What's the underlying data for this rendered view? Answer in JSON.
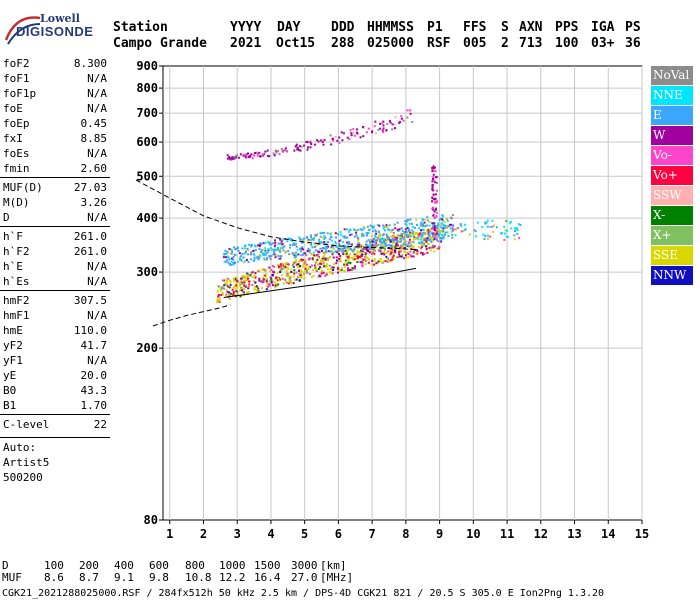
{
  "logo": {
    "line1": "Lowell",
    "line2": "DIGISONDE"
  },
  "header": {
    "labels": [
      "Station",
      "YYYY",
      "DAY",
      "DDD",
      "HHMMSS",
      "P1",
      "FFS",
      "S",
      "AXN",
      "PPS",
      "IGA",
      "PS"
    ],
    "values": [
      "Campo Grande",
      "2021",
      "Oct15",
      "288",
      "025000",
      "RSF",
      "005",
      "2",
      "713",
      "100",
      "03+",
      "36"
    ]
  },
  "params": {
    "group1": [
      {
        "name": "foF2",
        "value": "8.300"
      },
      {
        "name": "foF1",
        "value": "N/A"
      },
      {
        "name": "foF1p",
        "value": "N/A"
      },
      {
        "name": "foE",
        "value": "N/A"
      },
      {
        "name": "foEp",
        "value": "0.45"
      },
      {
        "name": "fxI",
        "value": "8.85"
      },
      {
        "name": "foEs",
        "value": "N/A"
      },
      {
        "name": "fmin",
        "value": "2.60"
      }
    ],
    "group2": [
      {
        "name": "MUF(D)",
        "value": "27.03"
      },
      {
        "name": "M(D)",
        "value": "3.26"
      },
      {
        "name": "D",
        "value": "N/A"
      }
    ],
    "group3": [
      {
        "name": "h`F",
        "value": "261.0"
      },
      {
        "name": "h`F2",
        "value": "261.0"
      },
      {
        "name": "h`E",
        "value": "N/A"
      },
      {
        "name": "h`Es",
        "value": "N/A"
      }
    ],
    "group4": [
      {
        "name": "hmF2",
        "value": "307.5"
      },
      {
        "name": "hmF1",
        "value": "N/A"
      },
      {
        "name": "hmE",
        "value": "110.0"
      },
      {
        "name": "yF2",
        "value": "41.7"
      },
      {
        "name": "yF1",
        "value": "N/A"
      },
      {
        "name": "yE",
        "value": "20.0"
      },
      {
        "name": "B0",
        "value": "43.3"
      },
      {
        "name": "B1",
        "value": "1.70"
      }
    ],
    "group5": [
      {
        "name": "C-level",
        "value": "22"
      }
    ],
    "auto_lines": [
      "Auto:",
      "Artist5",
      "500200"
    ]
  },
  "legend": [
    {
      "label": "NoVal",
      "color": "#8c8c8c"
    },
    {
      "label": "NNE",
      "color": "#00e6ff"
    },
    {
      "label": "E",
      "color": "#3aa6ff"
    },
    {
      "label": "W",
      "color": "#a0009e"
    },
    {
      "label": "Vo-",
      "color": "#ff44cc"
    },
    {
      "label": "Vo+",
      "color": "#ff0040"
    },
    {
      "label": "SSW",
      "color": "#ffb0b0"
    },
    {
      "label": "X-",
      "color": "#008000"
    },
    {
      "label": "X+",
      "color": "#80c060"
    },
    {
      "label": "SSE",
      "color": "#d8d800"
    },
    {
      "label": "NNW",
      "color": "#1010c0"
    }
  ],
  "bottom": {
    "d_label": "D",
    "d_values": [
      "100",
      "200",
      "400",
      "600",
      "800",
      "1000",
      "1500",
      "3000"
    ],
    "d_unit": "[km]",
    "muf_label": "MUF",
    "muf_values": [
      "8.6",
      "8.7",
      "9.1",
      "9.8",
      "10.8",
      "12.2",
      "16.4",
      "27.0"
    ],
    "muf_unit": "[MHz]"
  },
  "footer": "CGK21_2021288025000.RSF / 284fx512h 50 kHz 2.5 km / DPS-4D CGK21 821 / 20.5 S 305.0 E Ion2Png 1.3.20",
  "chart_data": {
    "type": "scatter",
    "xlim": [
      0.8,
      15
    ],
    "ylim": [
      80,
      900
    ],
    "x_ticks": [
      1,
      2,
      3,
      4,
      5,
      6,
      7,
      8,
      9,
      10,
      11,
      12,
      13,
      14,
      15
    ],
    "y_ticks": [
      80,
      200,
      300,
      400,
      500,
      600,
      700,
      800,
      900
    ],
    "y_scale": "log",
    "grid": true,
    "clusters": [
      {
        "name": "o-trace",
        "f_range": [
          2.4,
          9.0
        ],
        "h_start": [
          255,
          285
        ],
        "h_end": [
          335,
          385
        ]
      },
      {
        "name": "x-trace",
        "f_range": [
          2.6,
          9.4
        ],
        "h_start": [
          310,
          340
        ],
        "h_end": [
          355,
          410
        ]
      },
      {
        "name": "second-hop",
        "f_range": [
          2.7,
          8.2
        ],
        "h_start": [
          545,
          560
        ],
        "h_end": [
          660,
          720
        ]
      },
      {
        "name": "spread",
        "f_range": [
          8.7,
          11.4
        ],
        "h": [
          355,
          395
        ]
      }
    ],
    "profile_curve": {
      "f": [
        0.0,
        1.0,
        2.0,
        3.0,
        4.0,
        5.0,
        6.0,
        7.0,
        7.8,
        8.3
      ],
      "h": [
        490,
        445,
        405,
        380,
        362,
        352,
        345,
        342,
        340,
        338
      ]
    },
    "lower_curve": {
      "f": [
        0.5,
        1.0,
        1.5,
        2.0,
        2.5,
        2.8
      ],
      "h": [
        225,
        232,
        238,
        243,
        248,
        252
      ]
    },
    "model_o": {
      "f": [
        2.6,
        3.5,
        4.5,
        5.5,
        6.5,
        7.5,
        8.3
      ],
      "h": [
        262,
        268,
        275,
        282,
        290,
        298,
        306
      ]
    }
  }
}
